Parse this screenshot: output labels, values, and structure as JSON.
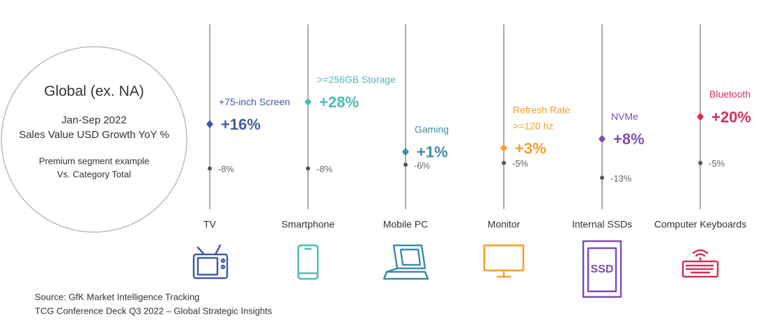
{
  "chart_data": {
    "type": "dot-range",
    "panel": {
      "title": "Global (ex. NA)",
      "period": "Jan-Sep 2022",
      "measure": "Sales Value USD Growth YoY %",
      "note_1": "Premium segment example",
      "note_2": "Vs. Category Total"
    },
    "categories": [
      "TV",
      "Smartphone",
      "Mobile PC",
      "Monitor",
      "Internal SSDs",
      "Computer Keyboards"
    ],
    "colors": [
      "#3f5ba9",
      "#4dbdb0",
      "#3d8ca8",
      "#f5a02a",
      "#7b4fb0",
      "#d0305a"
    ],
    "segments": [
      [
        "+75-inch Screen"
      ],
      [
        ">=256GB Storage"
      ],
      [
        "Gaming"
      ],
      [
        "Refresh Rate",
        ">=120 hz"
      ],
      [
        "NVMe"
      ],
      [
        "Bluetooth"
      ]
    ],
    "series": [
      {
        "name": "Premium segment",
        "values": [
          16,
          28,
          1,
          3,
          8,
          20
        ],
        "value_labels": [
          "+16%",
          "+28%",
          "+1%",
          "+3%",
          "+8%",
          "+20%"
        ]
      },
      {
        "name": "Category Total",
        "color": "#555555",
        "values": [
          -8,
          -8,
          -6,
          -5,
          -13,
          -5
        ],
        "value_labels": [
          "-8%",
          "-8%",
          "-6%",
          "-5%",
          "-13%",
          "-5%"
        ]
      }
    ],
    "ylim": [
      -30,
      70
    ],
    "source_1": "Source: GfK Market Intelligence Tracking",
    "source_2": "TCG Conference Deck Q3 2022 – Global Strategic Insights"
  }
}
